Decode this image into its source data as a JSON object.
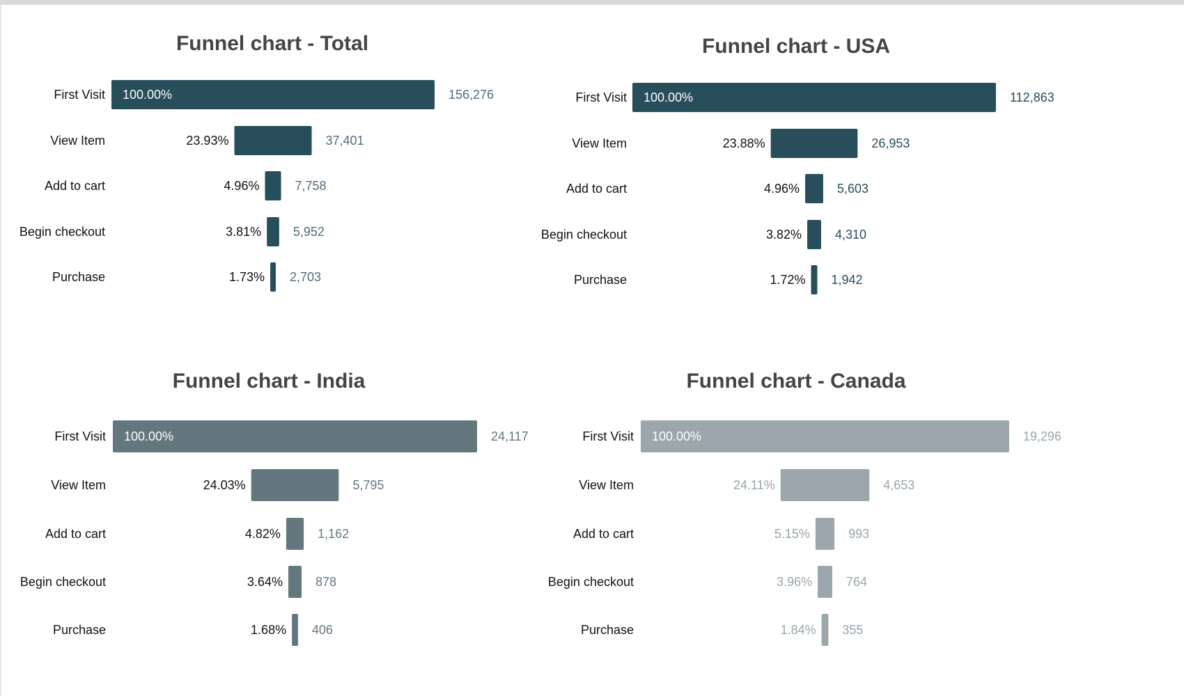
{
  "chart_data": [
    {
      "type": "bar",
      "orientation": "funnel",
      "title": "Funnel chart - Total",
      "categories": [
        "First Visit",
        "View Item",
        "Add to cart",
        "Begin checkout",
        "Purchase"
      ],
      "values": [
        156276,
        37401,
        7758,
        5952,
        2703
      ],
      "value_labels": [
        "156,276",
        "37,401",
        "7,758",
        "5,952",
        "2,703"
      ],
      "percent_labels": [
        "100.00%",
        "23.93%",
        "4.96%",
        "3.81%",
        "1.73%"
      ],
      "bar_color": "#284d5b",
      "pct_color": "#111111",
      "val_color": "#4d6d7a"
    },
    {
      "type": "bar",
      "orientation": "funnel",
      "title": "Funnel chart - USA",
      "categories": [
        "First Visit",
        "View Item",
        "Add to cart",
        "Begin checkout",
        "Purchase"
      ],
      "values": [
        112863,
        26953,
        5603,
        4310,
        1942
      ],
      "value_labels": [
        "112,863",
        "26,953",
        "5,603",
        "4,310",
        "1,942"
      ],
      "percent_labels": [
        "100.00%",
        "23.88%",
        "4.96%",
        "3.82%",
        "1.72%"
      ],
      "bar_color": "#284d5b",
      "pct_color": "#111111",
      "val_color": "#284d5b"
    },
    {
      "type": "bar",
      "orientation": "funnel",
      "title": "Funnel chart - India",
      "categories": [
        "First Visit",
        "View Item",
        "Add to cart",
        "Begin checkout",
        "Purchase"
      ],
      "values": [
        24117,
        5795,
        1162,
        878,
        406
      ],
      "value_labels": [
        "24,117",
        "5,795",
        "1,162",
        "878",
        "406"
      ],
      "percent_labels": [
        "100.00%",
        "24.03%",
        "4.82%",
        "3.64%",
        "1.68%"
      ],
      "bar_color": "#63787e",
      "pct_color": "#111111",
      "val_color": "#63787e"
    },
    {
      "type": "bar",
      "orientation": "funnel",
      "title": "Funnel chart - Canada",
      "categories": [
        "First Visit",
        "View Item",
        "Add to cart",
        "Begin checkout",
        "Purchase"
      ],
      "values": [
        19296,
        4653,
        993,
        764,
        355
      ],
      "value_labels": [
        "19,296",
        "4,653",
        "993",
        "764",
        "355"
      ],
      "percent_labels": [
        "100.00%",
        "24.11%",
        "5.15%",
        "3.96%",
        "1.84%"
      ],
      "bar_color": "#9ba7ad",
      "pct_color": "#9aa5ab",
      "val_color": "#9aa5ab"
    }
  ]
}
